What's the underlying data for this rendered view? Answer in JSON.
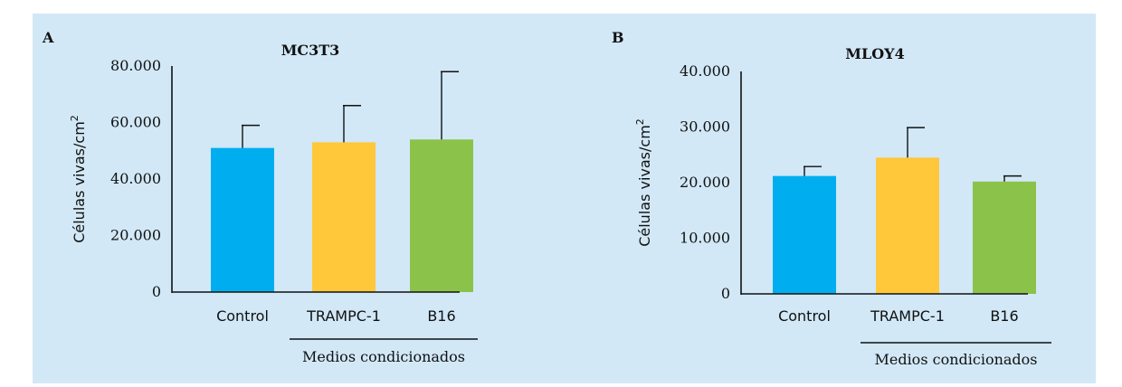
{
  "chart_data": [
    {
      "panel": "A",
      "type": "bar",
      "title": "MC3T3",
      "ylabel": "Células vivas/cm",
      "ylabel_sup": "2",
      "ylim": [
        0,
        80000
      ],
      "yticks": [
        0,
        20000,
        40000,
        60000,
        80000
      ],
      "ytick_labels": [
        "0",
        "20.000",
        "40.000",
        "60.000",
        "80.000"
      ],
      "categories": [
        "Control",
        "TRAMPC-1",
        "B16"
      ],
      "values": [
        51000,
        53000,
        54000
      ],
      "errors": [
        8000,
        13000,
        24000
      ],
      "colors": [
        "#00aeef",
        "#ffc73a",
        "#8bc34a"
      ],
      "group_label": "Medios condicionados",
      "grid": false
    },
    {
      "panel": "B",
      "type": "bar",
      "title": "MLOY4",
      "ylabel": "Células vivas/cm",
      "ylabel_sup": "2",
      "ylim": [
        0,
        40000
      ],
      "yticks": [
        0,
        10000,
        20000,
        30000,
        40000
      ],
      "ytick_labels": [
        "0",
        "10.000",
        "20.000",
        "30.000",
        "40.000"
      ],
      "categories": [
        "Control",
        "TRAMPC-1",
        "B16"
      ],
      "values": [
        21200,
        24500,
        20200
      ],
      "errors": [
        1700,
        5400,
        1000
      ],
      "colors": [
        "#00aeef",
        "#ffc73a",
        "#8bc34a"
      ],
      "group_label": "Medios condicionados",
      "grid": false
    }
  ]
}
